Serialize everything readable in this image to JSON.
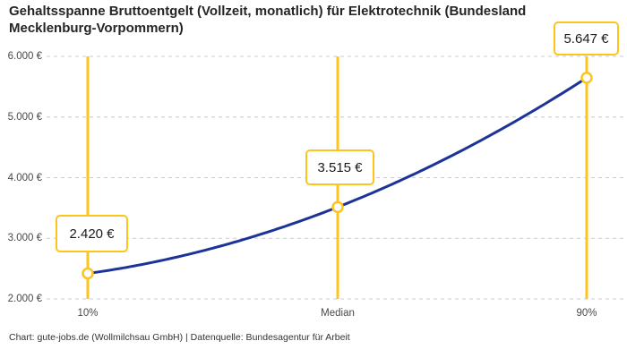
{
  "header": {
    "title": "Gehaltsspanne Bruttoentgelt (Vollzeit, monatlich) für Elektrotechnik (Bundesland Mecklenburg-Vorpommern)"
  },
  "footer": {
    "credit": "Chart: gute-jobs.de (Wollmilchsau GmbH) | Datenquelle: Bundesagentur für Arbeit"
  },
  "chart_data": {
    "type": "line",
    "title": "Gehaltsspanne Bruttoentgelt (Vollzeit, monatlich) für Elektrotechnik (Bundesland Mecklenburg-Vorpommern)",
    "categories": [
      "10%",
      "Median",
      "90%"
    ],
    "values": [
      2420,
      3515,
      5647
    ],
    "value_labels": [
      "2.420 €",
      "3.515 €",
      "5.647 €"
    ],
    "y_tick_values": [
      6000,
      5000,
      4000,
      3000,
      2000
    ],
    "y_tick_labels": [
      "6.000 €",
      "5.000 €",
      "4.000 €",
      "3.000 €",
      "2.000 €"
    ],
    "ylim": [
      2000,
      6000
    ],
    "xlabel": "",
    "ylabel": "",
    "grid": "horizontal-dashed",
    "legend": "none",
    "annotations": "vertical percentile marker lines with framed value callouts",
    "colors": {
      "line": "#1C3398",
      "annotation": "#FCC41D",
      "grid": "#CCCCCC",
      "title_text": "#252525",
      "axis_text": "#494949"
    }
  }
}
